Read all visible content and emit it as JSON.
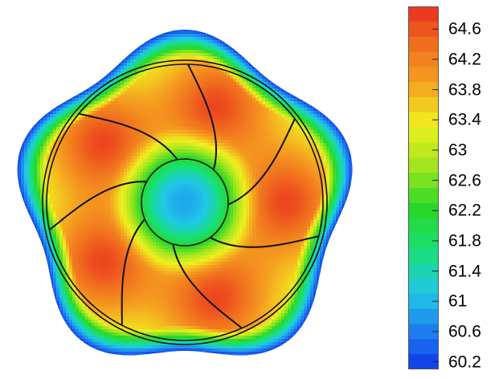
{
  "chart_data": {
    "type": "heatmap",
    "title": "",
    "xlabel": "",
    "ylabel": "",
    "colormap": [
      "#0a28e6",
      "#1e78f0",
      "#20c8e8",
      "#18e07a",
      "#28d828",
      "#a0e61e",
      "#f0f01e",
      "#f5a020",
      "#f06a1e",
      "#e8201e"
    ],
    "contour_levels": [
      60.2,
      60.4,
      60.6,
      60.8,
      61,
      61.2,
      61.4,
      61.6,
      61.8,
      62,
      62.2,
      62.4,
      62.6,
      62.8,
      63,
      63.2,
      63.4,
      63.6,
      63.8,
      64,
      64.2,
      64.4,
      64.6,
      64.8
    ],
    "colorbar_ticks": [
      "64.6",
      "64.2",
      "63.8",
      "63.4",
      "63",
      "62.6",
      "62.2",
      "61.8",
      "61.4",
      "61",
      "60.6",
      "60.2"
    ],
    "range": [
      60.0,
      65.0
    ],
    "lobes": 5,
    "blades": 7,
    "hotspot_value": 64.7,
    "hub_value": 60.9,
    "outer_edge_value": 60.2
  }
}
